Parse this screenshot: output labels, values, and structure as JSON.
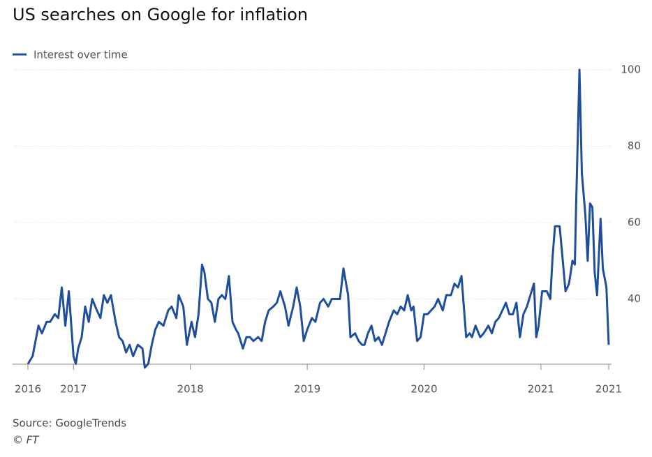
{
  "chart_data": {
    "type": "line",
    "title": "US searches on Google for inflation",
    "source": "Source: GoogleTrends",
    "credit": "© FT",
    "legend": "top-left",
    "grid": true,
    "xlim": [
      2016.61,
      2021.58
    ],
    "xticks": [
      {
        "value": 2016.61,
        "label": "2016"
      },
      2017,
      2018,
      2019,
      2020,
      2021,
      {
        "value": 2021.58,
        "label": "2021"
      }
    ],
    "ylim": [
      22,
      100
    ],
    "yticks": [
      40,
      60,
      80,
      100
    ],
    "x": [
      2016.61,
      2016.65,
      2016.7,
      2016.73,
      2016.77,
      2016.8,
      2016.84,
      2016.87,
      2016.9,
      2016.93,
      2016.96,
      2017.0,
      2017.02,
      2017.04,
      2017.07,
      2017.1,
      2017.13,
      2017.16,
      2017.2,
      2017.23,
      2017.26,
      2017.29,
      2017.32,
      2017.36,
      2017.39,
      2017.42,
      2017.45,
      2017.48,
      2017.51,
      2017.55,
      2017.59,
      2017.61,
      2017.64,
      2017.67,
      2017.7,
      2017.73,
      2017.77,
      2017.81,
      2017.84,
      2017.88,
      2017.9,
      2017.94,
      2017.97,
      2018.01,
      2018.04,
      2018.07,
      2018.1,
      2018.12,
      2018.15,
      2018.18,
      2018.21,
      2018.24,
      2018.27,
      2018.3,
      2018.33,
      2018.36,
      2018.39,
      2018.41,
      2018.45,
      2018.48,
      2018.51,
      2018.54,
      2018.58,
      2018.61,
      2018.64,
      2018.67,
      2018.71,
      2018.74,
      2018.77,
      2018.81,
      2018.84,
      2018.88,
      2018.91,
      2018.94,
      2018.97,
      2019.0,
      2019.04,
      2019.07,
      2019.11,
      2019.14,
      2019.18,
      2019.21,
      2019.25,
      2019.28,
      2019.31,
      2019.35,
      2019.37,
      2019.41,
      2019.44,
      2019.47,
      2019.49,
      2019.52,
      2019.55,
      2019.58,
      2019.61,
      2019.64,
      2019.67,
      2019.7,
      2019.74,
      2019.77,
      2019.8,
      2019.83,
      2019.86,
      2019.89,
      2019.91,
      2019.94,
      2019.97,
      2020.0,
      2020.03,
      2020.06,
      2020.09,
      2020.12,
      2020.16,
      2020.19,
      2020.23,
      2020.26,
      2020.29,
      2020.32,
      2020.36,
      2020.39,
      2020.41,
      2020.44,
      2020.48,
      2020.51,
      2020.55,
      2020.58,
      2020.61,
      2020.64,
      2020.67,
      2020.7,
      2020.73,
      2020.76,
      2020.79,
      2020.82,
      2020.85,
      2020.88,
      2020.91,
      2020.94,
      2020.96,
      2020.98,
      2021.01,
      2021.05,
      2021.08,
      2021.1,
      2021.12,
      2021.16,
      2021.19,
      2021.21,
      2021.24,
      2021.27,
      2021.29,
      2021.3,
      2021.33,
      2021.35,
      2021.38,
      2021.4,
      2021.42,
      2021.44,
      2021.46,
      2021.48,
      2021.51,
      2021.53,
      2021.56,
      2021.58
    ],
    "series": [
      {
        "name": "Interest over time",
        "color": "#1f4e9c",
        "values": [
          23,
          25,
          33,
          31,
          34,
          34,
          36,
          35,
          43,
          33,
          42,
          25,
          23,
          27,
          30,
          38,
          34,
          40,
          37,
          35,
          41,
          39,
          41,
          34,
          30,
          29,
          26,
          28,
          25,
          28,
          27,
          22,
          23,
          28,
          32,
          34,
          33,
          37,
          38,
          35,
          41,
          38,
          28,
          34,
          30,
          36,
          49,
          47,
          40,
          39,
          34,
          40,
          41,
          40,
          46,
          34,
          32,
          31,
          27,
          30,
          30,
          29,
          30,
          29,
          34,
          37,
          38,
          39,
          42,
          38,
          33,
          38,
          43,
          38,
          29,
          32,
          35,
          34,
          39,
          40,
          38,
          40,
          40,
          40,
          48,
          41,
          30,
          31,
          29,
          28,
          28,
          31,
          33,
          29,
          30,
          28,
          31,
          34,
          37,
          36,
          38,
          37,
          41,
          37,
          38,
          29,
          30,
          36,
          36,
          37,
          38,
          40,
          37,
          41,
          41,
          44,
          43,
          46,
          30,
          31,
          30,
          33,
          30,
          31,
          33,
          31,
          34,
          35,
          37,
          39,
          36,
          36,
          39,
          30,
          36,
          38,
          41,
          44,
          30,
          33,
          42,
          42,
          40,
          51,
          59,
          59,
          49,
          42,
          44,
          50,
          49,
          63,
          100,
          73,
          62,
          50,
          65,
          64,
          47,
          41,
          61,
          48,
          43,
          28
        ]
      }
    ]
  }
}
